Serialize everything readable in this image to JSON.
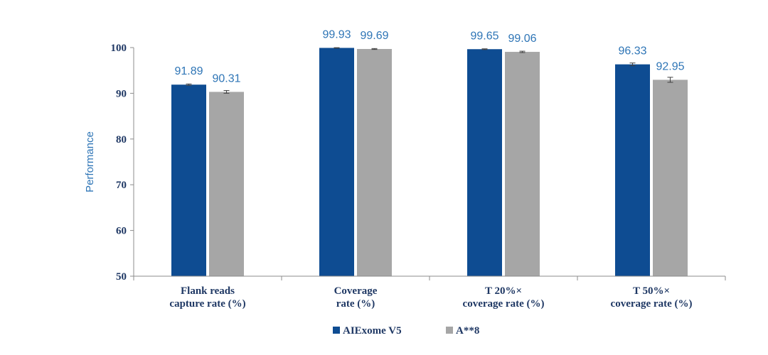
{
  "chart_data": {
    "type": "bar",
    "title": "",
    "xlabel": "",
    "ylabel": "Performance",
    "ylim": [
      50,
      100
    ],
    "yticks": [
      50,
      60,
      70,
      80,
      90,
      100
    ],
    "grid": false,
    "legend_position": "bottom",
    "categories": [
      [
        "Flank reads",
        "capture rate (%)"
      ],
      [
        "Coverage",
        "rate (%)"
      ],
      [
        "T 20%×",
        "coverage rate (%)"
      ],
      [
        "T 50%×",
        "coverage rate (%)"
      ]
    ],
    "series": [
      {
        "name": "AIExome V5",
        "color": "#0e4c92",
        "values": [
          91.89,
          99.93,
          99.65,
          96.33
        ],
        "errors": [
          0.15,
          0.05,
          0.08,
          0.3
        ]
      },
      {
        "name": "A**8",
        "color": "#a6a6a6",
        "values": [
          90.31,
          99.69,
          99.06,
          92.95
        ],
        "errors": [
          0.3,
          0.1,
          0.15,
          0.55
        ]
      }
    ],
    "data_labels": [
      [
        "91.89",
        "99.93",
        "99.65",
        "96.33"
      ],
      [
        "90.31",
        "99.69",
        "99.06",
        "92.95"
      ]
    ],
    "colors": {
      "ylabel": "#2e75b6",
      "data_label": "#2e75b6",
      "axis": "#8c8c8c",
      "error_bar": "#404040"
    }
  }
}
